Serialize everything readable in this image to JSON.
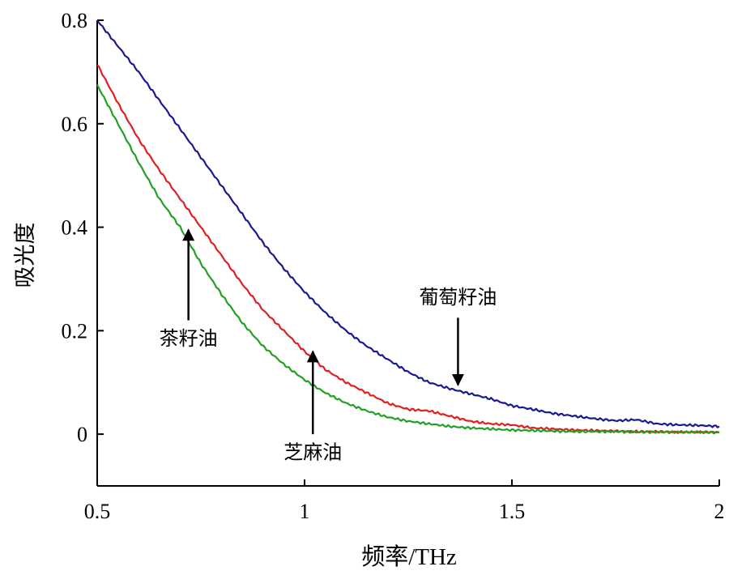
{
  "chart_data": {
    "type": "line",
    "title": "",
    "xlabel": "频率/THz",
    "ylabel": "吸光度",
    "xlim": [
      0.5,
      2
    ],
    "ylim": [
      -0.1,
      0.8
    ],
    "xticks": [
      0.5,
      1,
      1.5,
      2
    ],
    "xtick_labels": [
      "0.5",
      "1",
      "1.5",
      "2"
    ],
    "yticks": [
      0,
      0.2,
      0.4,
      0.6,
      0.8
    ],
    "ytick_labels": [
      "0",
      "0.2",
      "0.4",
      "0.6",
      "0.8"
    ],
    "grid": false,
    "legend": "none",
    "series": [
      {
        "name": "葡萄籽油",
        "color": "#1a1a8c",
        "x": [
          0.5,
          0.55,
          0.6,
          0.65,
          0.7,
          0.75,
          0.8,
          0.85,
          0.9,
          0.95,
          1.0,
          1.05,
          1.1,
          1.15,
          1.2,
          1.25,
          1.3,
          1.35,
          1.4,
          1.45,
          1.5,
          1.55,
          1.6,
          1.65,
          1.7,
          1.75,
          1.8,
          1.85,
          1.9,
          1.95,
          2.0
        ],
        "y": [
          0.8,
          0.75,
          0.7,
          0.645,
          0.59,
          0.535,
          0.48,
          0.425,
          0.37,
          0.32,
          0.275,
          0.235,
          0.2,
          0.17,
          0.145,
          0.12,
          0.1,
          0.088,
          0.078,
          0.068,
          0.055,
          0.048,
          0.04,
          0.035,
          0.03,
          0.026,
          0.028,
          0.02,
          0.018,
          0.017,
          0.015
        ]
      },
      {
        "name": "芝麻油",
        "color": "#e02020",
        "x": [
          0.5,
          0.55,
          0.6,
          0.65,
          0.7,
          0.75,
          0.8,
          0.85,
          0.9,
          0.95,
          1.0,
          1.05,
          1.1,
          1.15,
          1.2,
          1.25,
          1.3,
          1.35,
          1.4,
          1.45,
          1.5,
          1.55,
          1.6,
          1.65,
          1.7,
          1.75,
          1.8,
          1.85,
          1.9,
          1.95,
          2.0
        ],
        "y": [
          0.715,
          0.64,
          0.57,
          0.51,
          0.455,
          0.4,
          0.345,
          0.29,
          0.24,
          0.2,
          0.16,
          0.125,
          0.1,
          0.08,
          0.06,
          0.048,
          0.045,
          0.035,
          0.025,
          0.02,
          0.018,
          0.012,
          0.01,
          0.008,
          0.007,
          0.006,
          0.005,
          0.005,
          0.004,
          0.004,
          0.004
        ]
      },
      {
        "name": "茶籽油",
        "color": "#22a022",
        "x": [
          0.5,
          0.55,
          0.6,
          0.65,
          0.7,
          0.75,
          0.8,
          0.85,
          0.9,
          0.95,
          1.0,
          1.05,
          1.1,
          1.15,
          1.2,
          1.25,
          1.3,
          1.35,
          1.4,
          1.45,
          1.5,
          1.55,
          1.6,
          1.65,
          1.7,
          1.75,
          1.8,
          1.85,
          1.9,
          1.95,
          2.0
        ],
        "y": [
          0.675,
          0.6,
          0.525,
          0.455,
          0.4,
          0.33,
          0.27,
          0.215,
          0.17,
          0.135,
          0.105,
          0.08,
          0.06,
          0.045,
          0.033,
          0.025,
          0.02,
          0.015,
          0.012,
          0.01,
          0.008,
          0.007,
          0.006,
          0.005,
          0.005,
          0.005,
          0.004,
          0.004,
          0.004,
          0.004,
          0.003
        ]
      }
    ],
    "annotations": [
      {
        "text": "葡萄籽油",
        "arrow_from": [
          1.37,
          0.225
        ],
        "arrow_to": [
          1.37,
          0.095
        ],
        "text_at": [
          1.37,
          0.265
        ]
      },
      {
        "text": "茶籽油",
        "arrow_from": [
          0.72,
          0.22
        ],
        "arrow_to": [
          0.72,
          0.395
        ],
        "text_at": [
          0.72,
          0.185
        ]
      },
      {
        "text": "芝麻油",
        "arrow_from": [
          1.02,
          0.0
        ],
        "arrow_to": [
          1.02,
          0.16
        ],
        "text_at": [
          1.02,
          -0.035
        ]
      }
    ]
  }
}
